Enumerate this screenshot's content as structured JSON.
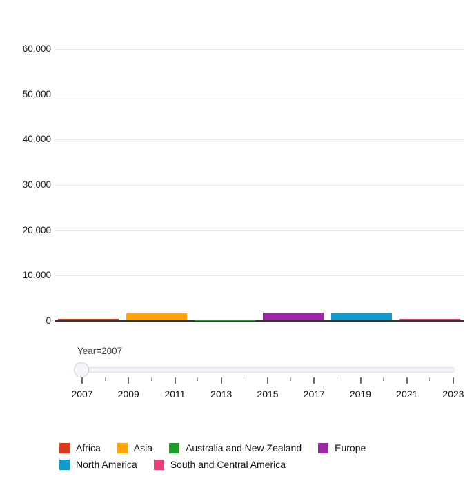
{
  "chart_data": {
    "type": "bar",
    "title": "",
    "xlabel": "",
    "ylabel": "",
    "categories": [
      "Africa",
      "Asia",
      "Australia and New Zealand",
      "Europe",
      "North America",
      "South and Central America"
    ],
    "values": [
      380,
      1500,
      60,
      1680,
      1560,
      380
    ],
    "colors": [
      "#d73a1c",
      "#ffa408",
      "#1d9c26",
      "#9d27a5",
      "#139bc9",
      "#e54379"
    ],
    "ylim": [
      0,
      60000
    ],
    "y_ticks": [
      0,
      10000,
      20000,
      30000,
      40000,
      50000,
      60000
    ],
    "y_tick_labels": [
      "0",
      "10,000",
      "20,000",
      "30,000",
      "40,000",
      "50,000",
      "60,000"
    ],
    "grid": true,
    "legend_position": "bottom"
  },
  "slider": {
    "label": "Year=2007",
    "current_year": 2007,
    "min_year": 2007,
    "max_year": 2023,
    "tick_labels": [
      "2007",
      "2009",
      "2011",
      "2013",
      "2015",
      "2017",
      "2019",
      "2021",
      "2023"
    ]
  },
  "legend": {
    "items": [
      {
        "label": "Africa",
        "color": "#d73a1c"
      },
      {
        "label": "Asia",
        "color": "#ffa408"
      },
      {
        "label": "Australia and New Zealand",
        "color": "#1d9c26"
      },
      {
        "label": "Europe",
        "color": "#9d27a5"
      },
      {
        "label": "North America",
        "color": "#139bc9"
      },
      {
        "label": "South and Central America",
        "color": "#e54379"
      }
    ]
  }
}
